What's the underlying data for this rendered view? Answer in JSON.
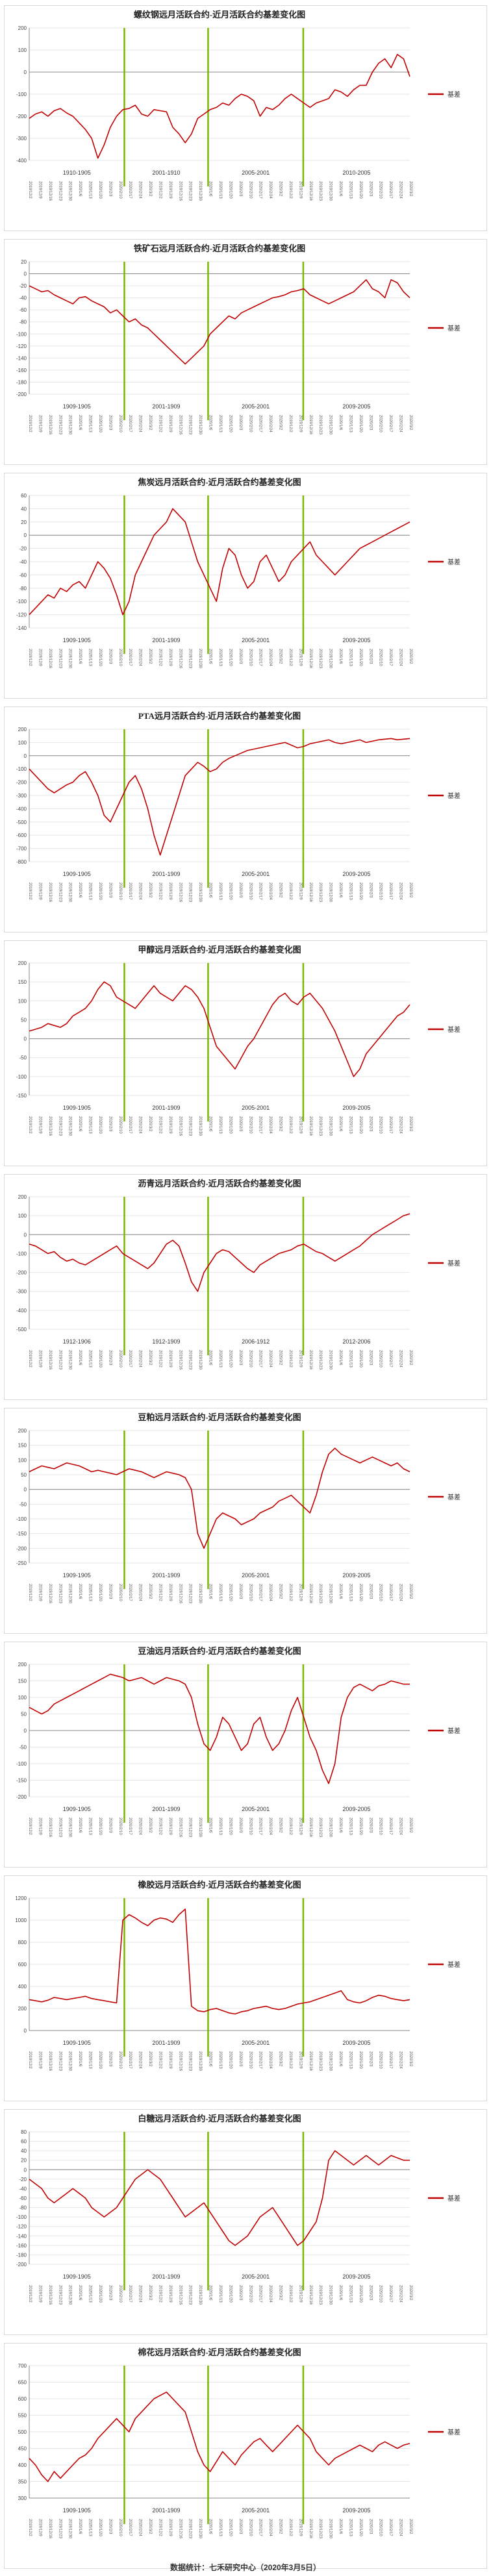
{
  "footer": "数据统计：七禾研究中心（2020年3月5日）",
  "legend_label": "基差",
  "colors": {
    "series": "#c00000",
    "marker": "#7ab800",
    "grid": "#e6e6e6",
    "axis": "#888888"
  },
  "x_tick_labels": [
    "2019/12/2",
    "2019/12/9",
    "2019/12/16",
    "2019/12/23",
    "2019/12/30",
    "2020/1/6",
    "2020/1/13",
    "2020/1/20",
    "2020/2/3",
    "2020/2/10",
    "2020/2/17",
    "2020/2/24",
    "2020/3/2",
    "2019/12/2",
    "2019/12/9",
    "2019/12/16",
    "2019/12/23",
    "2019/12/30",
    "2020/1/6",
    "2020/1/13",
    "2020/1/20",
    "2020/2/3",
    "2020/2/10",
    "2020/2/17",
    "2020/2/24",
    "2020/3/2",
    "2019/12/2",
    "2019/12/9",
    "2019/12/16",
    "2019/12/23",
    "2019/12/30",
    "2020/1/6",
    "2020/1/13",
    "2020/1/20",
    "2020/2/3",
    "2020/2/10",
    "2020/2/17",
    "2020/2/24",
    "2020/3/2"
  ],
  "chart_data": [
    {
      "type": "line",
      "title": "螺纹钢远月活跃合约-近月活跃合约基差变化图",
      "ylim": [
        -400,
        200
      ],
      "yticks": [
        200,
        100,
        0,
        -100,
        -200,
        -300,
        -400
      ],
      "periods": [
        "1910-1905",
        "2001-1910",
        "2005-2001",
        "2010-2005"
      ],
      "marker_positions": [
        0.25,
        0.47,
        0.72
      ],
      "series": [
        {
          "name": "基差",
          "values": [
            -210,
            -190,
            -180,
            -200,
            -175,
            -165,
            -185,
            -200,
            -230,
            -260,
            -300,
            -390,
            -330,
            -250,
            -200,
            -170,
            -165,
            -150,
            -190,
            -200,
            -170,
            -175,
            -180,
            -250,
            -280,
            -320,
            -280,
            -210,
            -190,
            -170,
            -160,
            -140,
            -150,
            -120,
            -100,
            -110,
            -130,
            -200,
            -160,
            -170,
            -150,
            -120,
            -100,
            -120,
            -140,
            -160,
            -140,
            -130,
            -120,
            -80,
            -90,
            -110,
            -80,
            -60,
            -60,
            0,
            40,
            60,
            20,
            80,
            60,
            -20
          ]
        }
      ]
    },
    {
      "type": "line",
      "title": "铁矿石远月活跃合约-近月活跃合约基差变化图",
      "ylim": [
        -200,
        20
      ],
      "yticks": [
        20,
        0,
        -20,
        -40,
        -60,
        -80,
        -100,
        -120,
        -140,
        -160,
        -180,
        -200
      ],
      "periods": [
        "1909-1905",
        "2001-1909",
        "2005-2001",
        "2009-2005"
      ],
      "marker_positions": [
        0.25,
        0.47,
        0.72
      ],
      "series": [
        {
          "name": "基差",
          "values": [
            -20,
            -25,
            -30,
            -28,
            -35,
            -40,
            -45,
            -50,
            -40,
            -38,
            -45,
            -50,
            -55,
            -65,
            -60,
            -70,
            -80,
            -75,
            -85,
            -90,
            -100,
            -110,
            -120,
            -130,
            -140,
            -150,
            -140,
            -130,
            -120,
            -100,
            -90,
            -80,
            -70,
            -75,
            -65,
            -60,
            -55,
            -50,
            -45,
            -40,
            -38,
            -35,
            -30,
            -28,
            -25,
            -35,
            -40,
            -45,
            -50,
            -45,
            -40,
            -35,
            -30,
            -20,
            -10,
            -25,
            -30,
            -40,
            -10,
            -15,
            -30,
            -40
          ]
        }
      ]
    },
    {
      "type": "line",
      "title": "焦炭远月活跃合约-近月活跃合约基差变化图",
      "ylim": [
        -140,
        60
      ],
      "yticks": [
        60,
        40,
        20,
        0,
        -20,
        -40,
        -60,
        -80,
        -100,
        -120,
        -140
      ],
      "periods": [
        "1909-1905",
        "2001-1909",
        "2005-2001",
        "2009-2005"
      ],
      "marker_positions": [
        0.25,
        0.47,
        0.72
      ],
      "series": [
        {
          "name": "基差",
          "values": [
            -120,
            -110,
            -100,
            -90,
            -95,
            -80,
            -85,
            -75,
            -70,
            -80,
            -60,
            -40,
            -50,
            -65,
            -90,
            -120,
            -100,
            -60,
            -40,
            -20,
            0,
            10,
            20,
            40,
            30,
            20,
            -10,
            -40,
            -60,
            -80,
            -100,
            -50,
            -20,
            -30,
            -60,
            -80,
            -70,
            -40,
            -30,
            -50,
            -70,
            -60,
            -40,
            -30,
            -20,
            -10,
            -30,
            -40,
            -50,
            -60,
            -50,
            -40,
            -30,
            -20,
            -15,
            -10,
            -5,
            0,
            5,
            10,
            15,
            20
          ]
        }
      ]
    },
    {
      "type": "line",
      "title": "PTA远月活跃合约-近月活跃合约基差变化图",
      "ylim": [
        -800,
        200
      ],
      "yticks": [
        200,
        100,
        0,
        -100,
        -200,
        -300,
        -400,
        -500,
        -600,
        -700,
        -800
      ],
      "periods": [
        "1909-1905",
        "2001-1909",
        "2005-2001",
        "2009-2005"
      ],
      "marker_positions": [
        0.25,
        0.47,
        0.72
      ],
      "series": [
        {
          "name": "基差",
          "values": [
            -100,
            -150,
            -200,
            -250,
            -280,
            -250,
            -220,
            -200,
            -150,
            -120,
            -200,
            -300,
            -450,
            -500,
            -400,
            -300,
            -200,
            -150,
            -250,
            -400,
            -600,
            -750,
            -600,
            -450,
            -300,
            -150,
            -100,
            -50,
            -80,
            -120,
            -100,
            -50,
            -20,
            0,
            20,
            40,
            50,
            60,
            70,
            80,
            90,
            100,
            80,
            60,
            70,
            90,
            100,
            110,
            120,
            100,
            90,
            100,
            110,
            120,
            100,
            110,
            120,
            125,
            130,
            120,
            125,
            130
          ]
        }
      ]
    },
    {
      "type": "line",
      "title": "甲醇远月活跃合约-近月活跃合约基差变化图",
      "ylim": [
        -150,
        200
      ],
      "yticks": [
        200,
        150,
        100,
        50,
        0,
        -50,
        -100,
        -150
      ],
      "periods": [
        "1909-1905",
        "2001-1909",
        "2005-2001",
        "2009-2005"
      ],
      "marker_positions": [
        0.25,
        0.47,
        0.72
      ],
      "series": [
        {
          "name": "基差",
          "values": [
            20,
            25,
            30,
            40,
            35,
            30,
            40,
            60,
            70,
            80,
            100,
            130,
            150,
            140,
            110,
            100,
            90,
            80,
            100,
            120,
            140,
            120,
            110,
            100,
            120,
            140,
            130,
            110,
            80,
            30,
            -20,
            -40,
            -60,
            -80,
            -50,
            -20,
            0,
            30,
            60,
            90,
            110,
            120,
            100,
            90,
            110,
            120,
            100,
            80,
            50,
            20,
            -20,
            -60,
            -100,
            -80,
            -40,
            -20,
            0,
            20,
            40,
            60,
            70,
            90
          ]
        }
      ]
    },
    {
      "type": "line",
      "title": "沥青远月活跃合约-近月活跃合约基差变化图",
      "ylim": [
        -500,
        200
      ],
      "yticks": [
        200,
        100,
        0,
        -100,
        -200,
        -300,
        -400,
        -500
      ],
      "periods": [
        "1912-1906",
        "1912-1909",
        "2006-1912",
        "2012-2006"
      ],
      "marker_positions": [
        0.25,
        0.47,
        0.72
      ],
      "series": [
        {
          "name": "基差",
          "values": [
            -50,
            -60,
            -80,
            -100,
            -90,
            -120,
            -140,
            -130,
            -150,
            -160,
            -140,
            -120,
            -100,
            -80,
            -60,
            -100,
            -120,
            -140,
            -160,
            -180,
            -150,
            -100,
            -50,
            -30,
            -60,
            -150,
            -250,
            -300,
            -200,
            -150,
            -100,
            -80,
            -90,
            -120,
            -150,
            -180,
            -200,
            -160,
            -140,
            -120,
            -100,
            -90,
            -80,
            -60,
            -50,
            -70,
            -90,
            -100,
            -120,
            -140,
            -120,
            -100,
            -80,
            -60,
            -30,
            0,
            20,
            40,
            60,
            80,
            100,
            110
          ]
        }
      ]
    },
    {
      "type": "line",
      "title": "豆粕远月活跃合约-近月活跃合约基差变化图",
      "ylim": [
        -250,
        200
      ],
      "yticks": [
        200,
        150,
        100,
        50,
        0,
        -50,
        -100,
        -150,
        -200,
        -250
      ],
      "periods": [
        "1909-1905",
        "2001-1909",
        "2005-2001",
        "2009-2005"
      ],
      "marker_positions": [
        0.25,
        0.47,
        0.72
      ],
      "series": [
        {
          "name": "基差",
          "values": [
            60,
            70,
            80,
            75,
            70,
            80,
            90,
            85,
            80,
            70,
            60,
            65,
            60,
            55,
            50,
            60,
            70,
            65,
            60,
            50,
            40,
            50,
            60,
            55,
            50,
            40,
            0,
            -150,
            -200,
            -150,
            -100,
            -80,
            -90,
            -100,
            -120,
            -110,
            -100,
            -80,
            -70,
            -60,
            -40,
            -30,
            -20,
            -40,
            -60,
            -80,
            -20,
            60,
            120,
            140,
            120,
            110,
            100,
            90,
            100,
            110,
            100,
            90,
            80,
            90,
            70,
            60
          ]
        }
      ]
    },
    {
      "type": "line",
      "title": "豆油远月活跃合约-近月活跃合约基差变化图",
      "ylim": [
        -200,
        200
      ],
      "yticks": [
        200,
        150,
        100,
        50,
        0,
        -50,
        -100,
        -150,
        -200
      ],
      "periods": [
        "1909-1905",
        "2001-1909",
        "2005-2001",
        "2009-2005"
      ],
      "marker_positions": [
        0.25,
        0.47,
        0.72
      ],
      "series": [
        {
          "name": "基差",
          "values": [
            70,
            60,
            50,
            60,
            80,
            90,
            100,
            110,
            120,
            130,
            140,
            150,
            160,
            170,
            165,
            160,
            150,
            155,
            160,
            150,
            140,
            150,
            160,
            155,
            150,
            140,
            100,
            20,
            -40,
            -60,
            -20,
            40,
            20,
            -20,
            -60,
            -40,
            20,
            40,
            -20,
            -60,
            -40,
            0,
            60,
            100,
            40,
            -20,
            -60,
            -120,
            -160,
            -100,
            40,
            100,
            130,
            140,
            130,
            120,
            135,
            140,
            150,
            145,
            140,
            140
          ]
        }
      ]
    },
    {
      "type": "line",
      "title": "橡胶远月活跃合约-近月活跃合约基差变化图",
      "ylim": [
        0,
        1200
      ],
      "yticks": [
        1200,
        1000,
        800,
        600,
        400,
        200,
        0
      ],
      "periods": [
        "1909-1905",
        "2001-1909",
        "2005-2001",
        "2009-2005"
      ],
      "marker_positions": [
        0.25,
        0.47,
        0.72
      ],
      "series": [
        {
          "name": "基差",
          "values": [
            280,
            270,
            260,
            275,
            300,
            290,
            280,
            290,
            300,
            310,
            290,
            280,
            270,
            260,
            250,
            1000,
            1050,
            1020,
            980,
            950,
            1000,
            1020,
            1010,
            980,
            1050,
            1100,
            220,
            180,
            170,
            190,
            200,
            180,
            160,
            150,
            170,
            180,
            200,
            210,
            220,
            200,
            190,
            200,
            220,
            240,
            250,
            260,
            280,
            300,
            320,
            340,
            360,
            280,
            260,
            250,
            270,
            300,
            320,
            310,
            290,
            280,
            270,
            280
          ]
        }
      ]
    },
    {
      "type": "line",
      "title": "白糖远月活跃合约-近月活跃合约基差变化图",
      "ylim": [
        -200,
        80
      ],
      "yticks": [
        80,
        60,
        40,
        20,
        0,
        -20,
        -40,
        -60,
        -80,
        -100,
        -120,
        -140,
        -160,
        -180,
        -200
      ],
      "periods": [
        "1909-1905",
        "2001-1909",
        "2005-2001",
        "2009-2005"
      ],
      "marker_positions": [
        0.25,
        0.47,
        0.72
      ],
      "series": [
        {
          "name": "基差",
          "values": [
            -20,
            -30,
            -40,
            -60,
            -70,
            -60,
            -50,
            -40,
            -50,
            -60,
            -80,
            -90,
            -100,
            -90,
            -80,
            -60,
            -40,
            -20,
            -10,
            0,
            -10,
            -20,
            -40,
            -60,
            -80,
            -100,
            -90,
            -80,
            -70,
            -90,
            -110,
            -130,
            -150,
            -160,
            -150,
            -140,
            -120,
            -100,
            -90,
            -80,
            -100,
            -120,
            -140,
            -160,
            -150,
            -130,
            -110,
            -60,
            20,
            40,
            30,
            20,
            10,
            20,
            30,
            20,
            10,
            20,
            30,
            25,
            20,
            20
          ]
        }
      ]
    },
    {
      "type": "line",
      "title": "棉花远月活跃合约-近月活跃合约基差变化图",
      "ylim": [
        300,
        700
      ],
      "yticks": [
        700,
        650,
        600,
        550,
        500,
        450,
        400,
        350,
        300
      ],
      "periods": [
        "1909-1905",
        "2001-1909",
        "2005-2001",
        "2009-2005"
      ],
      "marker_positions": [
        0.25,
        0.47,
        0.72
      ],
      "series": [
        {
          "name": "基差",
          "values": [
            420,
            400,
            370,
            350,
            380,
            360,
            380,
            400,
            420,
            430,
            450,
            480,
            500,
            520,
            540,
            520,
            500,
            540,
            560,
            580,
            600,
            610,
            620,
            600,
            580,
            560,
            500,
            440,
            400,
            380,
            410,
            440,
            420,
            400,
            430,
            450,
            470,
            480,
            460,
            440,
            460,
            480,
            500,
            520,
            500,
            480,
            440,
            420,
            400,
            420,
            430,
            440,
            450,
            460,
            450,
            440,
            460,
            470,
            460,
            450,
            460,
            465
          ]
        }
      ]
    }
  ]
}
